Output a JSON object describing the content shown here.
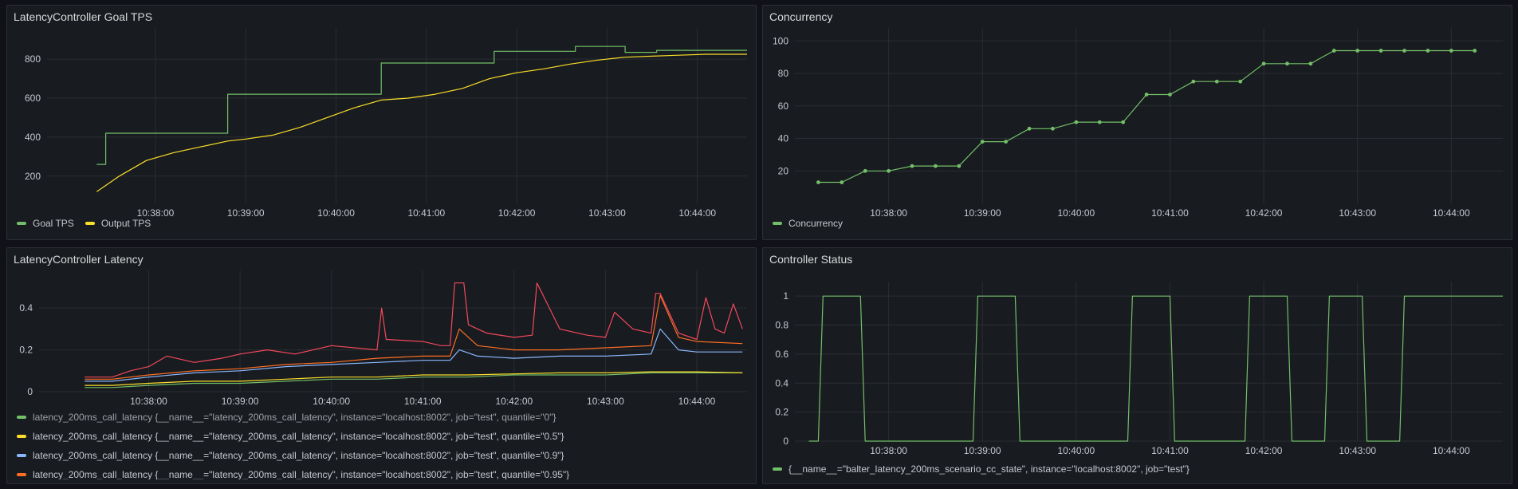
{
  "theme": {
    "green": "#73bf69",
    "yellow": "#fade2a",
    "orange": "#ff9830",
    "blue": "#8ab8ff",
    "red": "#f2495c",
    "deep_orange": "#fe6f24",
    "grid": "#2a2d33"
  },
  "time_ticks": [
    "10:38:00",
    "10:39:00",
    "10:40:00",
    "10:41:00",
    "10:42:00",
    "10:43:00",
    "10:44:00"
  ],
  "panels": {
    "goal_tps": {
      "title": "LatencyController Goal TPS",
      "legend": [
        {
          "label": "Goal TPS",
          "color": "#73bf69"
        },
        {
          "label": "Output TPS",
          "color": "#fade2a"
        }
      ]
    },
    "concurrency": {
      "title": "Concurrency",
      "legend": [
        {
          "label": "Concurrency",
          "color": "#73bf69"
        }
      ]
    },
    "latency": {
      "title": "LatencyController Latency",
      "legend": [
        {
          "label": "latency_200ms_call_latency {__name__=\"latency_200ms_call_latency\", instance=\"localhost:8002\", job=\"test\", quantile=\"0\"}",
          "color": "#73bf69"
        },
        {
          "label": "latency_200ms_call_latency {__name__=\"latency_200ms_call_latency\", instance=\"localhost:8002\", job=\"test\", quantile=\"0.5\"}",
          "color": "#fade2a"
        },
        {
          "label": "latency_200ms_call_latency {__name__=\"latency_200ms_call_latency\", instance=\"localhost:8002\", job=\"test\", quantile=\"0.9\"}",
          "color": "#8ab8ff"
        },
        {
          "label": "latency_200ms_call_latency {__name__=\"latency_200ms_call_latency\", instance=\"localhost:8002\", job=\"test\", quantile=\"0.95\"}",
          "color": "#fe6f24"
        }
      ]
    },
    "status": {
      "title": "Controller Status",
      "legend": [
        {
          "label": "{__name__=\"balter_latency_200ms_scenario_cc_state\", instance=\"localhost:8002\", job=\"test\"}",
          "color": "#73bf69"
        }
      ]
    }
  },
  "chart_data": [
    {
      "type": "line",
      "title": "LatencyController Goal TPS",
      "x_unit": "minutes after 10:37:00",
      "xlim": [
        0.0,
        7.55
      ],
      "yticks": [
        200,
        400,
        600,
        800
      ],
      "ylim": [
        60,
        960
      ],
      "series": [
        {
          "name": "Goal TPS",
          "color": "#73bf69",
          "step": true,
          "x": [
            0.35,
            0.45,
            0.45,
            1.8,
            1.8,
            3.5,
            3.5,
            4.75,
            4.75,
            5.65,
            5.65,
            6.2,
            6.2,
            6.55,
            6.55,
            7.55
          ],
          "y": [
            260,
            260,
            420,
            420,
            620,
            620,
            780,
            780,
            840,
            840,
            865,
            865,
            835,
            835,
            845,
            845
          ]
        },
        {
          "name": "Output TPS",
          "color": "#fade2a",
          "x": [
            0.35,
            0.6,
            0.9,
            1.2,
            1.5,
            1.8,
            2.0,
            2.3,
            2.6,
            2.9,
            3.2,
            3.5,
            3.8,
            4.1,
            4.4,
            4.7,
            5.0,
            5.3,
            5.6,
            5.9,
            6.2,
            6.5,
            6.8,
            7.1,
            7.55
          ],
          "y": [
            120,
            200,
            280,
            320,
            350,
            380,
            390,
            410,
            450,
            500,
            550,
            590,
            600,
            620,
            650,
            700,
            730,
            750,
            775,
            795,
            810,
            815,
            820,
            825,
            825
          ]
        }
      ]
    },
    {
      "type": "line",
      "title": "Concurrency",
      "x_unit": "minutes after 10:37:00",
      "xlim": [
        0.0,
        7.55
      ],
      "yticks": [
        20,
        40,
        60,
        80,
        100
      ],
      "ylim": [
        0,
        108
      ],
      "series": [
        {
          "name": "Concurrency",
          "color": "#73bf69",
          "points": true,
          "x": [
            0.25,
            0.5,
            0.75,
            1.0,
            1.25,
            1.5,
            1.75,
            2.0,
            2.25,
            2.5,
            2.75,
            3.0,
            3.25,
            3.5,
            3.75,
            4.0,
            4.25,
            4.5,
            4.75,
            5.0,
            5.25,
            5.5,
            5.75,
            6.0,
            6.25,
            6.5,
            6.75,
            7.0,
            7.25
          ],
          "y": [
            13,
            13,
            20,
            20,
            23,
            23,
            23,
            38,
            38,
            46,
            46,
            50,
            50,
            50,
            67,
            67,
            75,
            75,
            75,
            86,
            86,
            86,
            94,
            94,
            94,
            94,
            94,
            94,
            94
          ]
        }
      ]
    },
    {
      "type": "line",
      "title": "LatencyController Latency",
      "x_unit": "minutes after 10:37:00",
      "xlim": [
        0.0,
        7.55
      ],
      "yticks": [
        0,
        0.2,
        0.4
      ],
      "ylim": [
        0,
        0.58
      ],
      "series": [
        {
          "name": "quantile=\"0\"",
          "color": "#73bf69",
          "x": [
            0.3,
            0.6,
            1.0,
            1.5,
            2.0,
            2.5,
            3.0,
            3.5,
            4.0,
            4.5,
            5.0,
            5.5,
            6.0,
            6.5,
            7.0,
            7.5
          ],
          "y": [
            0.02,
            0.02,
            0.03,
            0.04,
            0.04,
            0.05,
            0.06,
            0.06,
            0.07,
            0.07,
            0.08,
            0.08,
            0.08,
            0.09,
            0.09,
            0.09
          ]
        },
        {
          "name": "quantile=\"0.5\"",
          "color": "#fade2a",
          "x": [
            0.3,
            0.6,
            1.0,
            1.5,
            2.0,
            2.5,
            3.0,
            3.5,
            4.0,
            4.5,
            5.0,
            5.5,
            6.0,
            6.5,
            7.0,
            7.5
          ],
          "y": [
            0.03,
            0.03,
            0.04,
            0.05,
            0.05,
            0.06,
            0.07,
            0.07,
            0.08,
            0.08,
            0.085,
            0.09,
            0.09,
            0.095,
            0.095,
            0.09
          ]
        },
        {
          "name": "quantile=\"0.9\"",
          "color": "#8ab8ff",
          "x": [
            0.3,
            0.6,
            1.0,
            1.5,
            2.0,
            2.5,
            3.0,
            3.5,
            4.0,
            4.3,
            4.4,
            4.6,
            5.0,
            5.5,
            6.0,
            6.5,
            6.6,
            6.8,
            7.0,
            7.5
          ],
          "y": [
            0.05,
            0.05,
            0.07,
            0.09,
            0.1,
            0.12,
            0.13,
            0.14,
            0.15,
            0.15,
            0.2,
            0.17,
            0.16,
            0.17,
            0.17,
            0.18,
            0.3,
            0.2,
            0.19,
            0.19
          ]
        },
        {
          "name": "quantile=\"0.95\"",
          "color": "#fe6f24",
          "x": [
            0.3,
            0.6,
            1.0,
            1.5,
            2.0,
            2.5,
            3.0,
            3.5,
            4.0,
            4.3,
            4.4,
            4.6,
            5.0,
            5.5,
            6.0,
            6.5,
            6.6,
            6.8,
            7.0,
            7.5
          ],
          "y": [
            0.06,
            0.06,
            0.08,
            0.1,
            0.11,
            0.13,
            0.14,
            0.16,
            0.17,
            0.17,
            0.3,
            0.22,
            0.2,
            0.2,
            0.21,
            0.22,
            0.46,
            0.26,
            0.24,
            0.23
          ]
        },
        {
          "name": "red",
          "color": "#f2495c",
          "x": [
            0.3,
            0.6,
            0.8,
            1.0,
            1.2,
            1.5,
            1.8,
            2.0,
            2.3,
            2.6,
            3.0,
            3.5,
            3.55,
            3.6,
            4.0,
            4.2,
            4.3,
            4.35,
            4.45,
            4.5,
            4.7,
            5.0,
            5.2,
            5.25,
            5.5,
            5.8,
            6.0,
            6.1,
            6.3,
            6.5,
            6.55,
            6.6,
            6.8,
            7.0,
            7.1,
            7.2,
            7.3,
            7.4,
            7.5
          ],
          "y": [
            0.07,
            0.07,
            0.1,
            0.12,
            0.17,
            0.14,
            0.16,
            0.18,
            0.2,
            0.18,
            0.22,
            0.2,
            0.4,
            0.25,
            0.24,
            0.22,
            0.22,
            0.52,
            0.52,
            0.32,
            0.28,
            0.26,
            0.27,
            0.52,
            0.3,
            0.27,
            0.26,
            0.38,
            0.3,
            0.28,
            0.47,
            0.47,
            0.28,
            0.25,
            0.45,
            0.3,
            0.28,
            0.42,
            0.3
          ]
        }
      ]
    },
    {
      "type": "line",
      "title": "Controller Status",
      "x_unit": "minutes after 10:37:00",
      "xlim": [
        0.0,
        7.55
      ],
      "yticks": [
        0,
        0.2,
        0.4,
        0.6,
        0.8,
        1
      ],
      "ylim": [
        0,
        1.1
      ],
      "series": [
        {
          "name": "{__name__=\"balter_latency_200ms_scenario_cc_state\", instance=\"localhost:8002\", job=\"test\"}",
          "color": "#73bf69",
          "x": [
            0.15,
            0.25,
            0.3,
            0.7,
            0.75,
            1.9,
            1.95,
            2.35,
            2.4,
            3.55,
            3.6,
            4.0,
            4.05,
            4.8,
            4.85,
            5.25,
            5.3,
            5.65,
            5.7,
            6.05,
            6.1,
            6.45,
            6.5,
            7.55
          ],
          "y": [
            0,
            0,
            1,
            1,
            0,
            0,
            1,
            1,
            0,
            0,
            1,
            1,
            0,
            0,
            1,
            1,
            0,
            0,
            1,
            1,
            0,
            0,
            1,
            1
          ]
        }
      ]
    }
  ]
}
